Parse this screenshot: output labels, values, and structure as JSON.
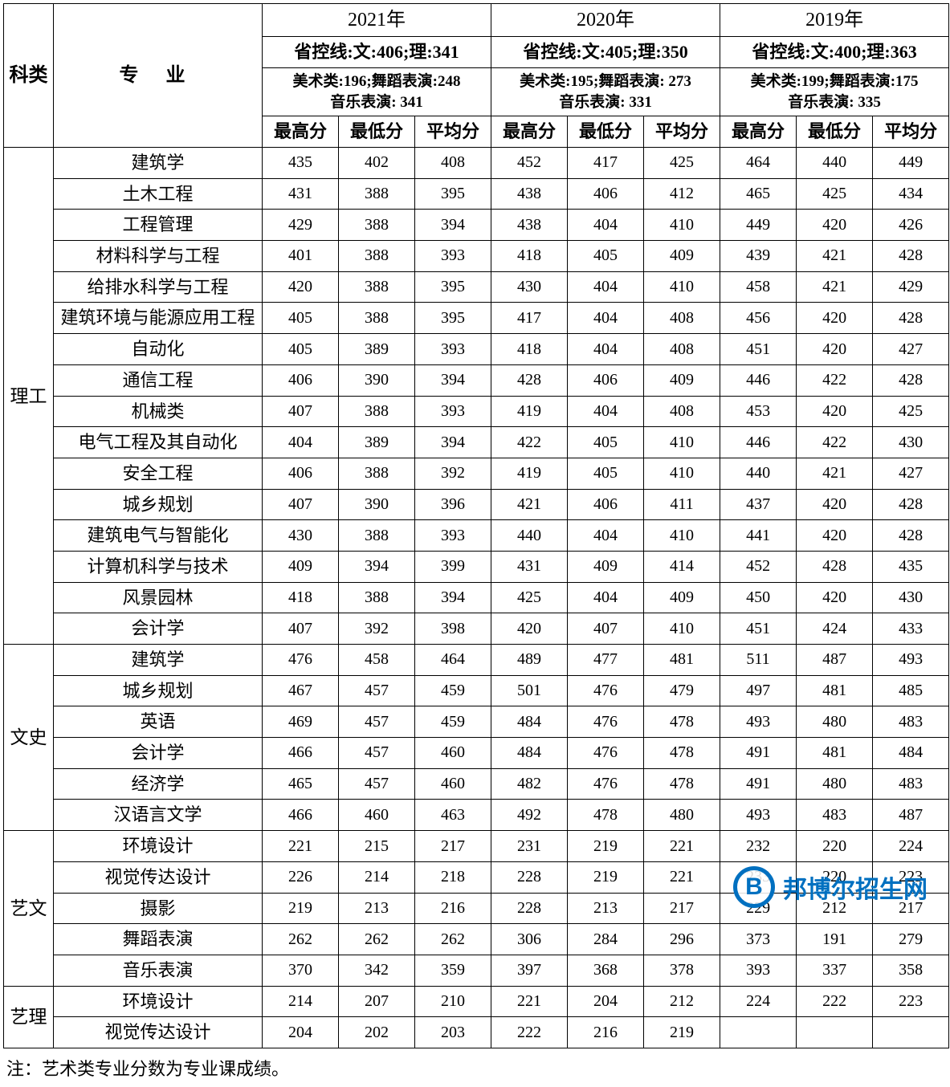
{
  "colors": {
    "text": "#000000",
    "border": "#000000",
    "background": "#ffffff",
    "watermark": "#0070c0"
  },
  "typography": {
    "base_family": "SimSun / 宋体 (serif)",
    "base_size_pt": 15,
    "header_bold": true
  },
  "header": {
    "category_label": "科类",
    "major_label": "专 业",
    "score_cols": [
      "最高分",
      "最低分",
      "平均分"
    ],
    "years": [
      {
        "year_label": "2021年",
        "control_line": "省控线:文:406;理:341",
        "art_lines": "美术类:196;舞蹈表演:248\n音乐表演: 341"
      },
      {
        "year_label": "2020年",
        "control_line": "省控线:文:405;理:350",
        "art_lines": "美术类:195;舞蹈表演: 273\n音乐表演: 331"
      },
      {
        "year_label": "2019年",
        "control_line": "省控线:文:400;理:363",
        "art_lines": "美术类:199;舞蹈表演:175\n音乐表演: 335"
      }
    ]
  },
  "groups": [
    {
      "category": "理工",
      "rows": [
        {
          "major": "建筑学",
          "s": [
            435,
            402,
            408,
            452,
            417,
            425,
            464,
            440,
            449
          ]
        },
        {
          "major": "土木工程",
          "s": [
            431,
            388,
            395,
            438,
            406,
            412,
            465,
            425,
            434
          ]
        },
        {
          "major": "工程管理",
          "s": [
            429,
            388,
            394,
            438,
            404,
            410,
            449,
            420,
            426
          ]
        },
        {
          "major": "材料科学与工程",
          "s": [
            401,
            388,
            393,
            418,
            405,
            409,
            439,
            421,
            428
          ]
        },
        {
          "major": "给排水科学与工程",
          "s": [
            420,
            388,
            395,
            430,
            404,
            410,
            458,
            421,
            429
          ]
        },
        {
          "major": "建筑环境与能源应用工程",
          "s": [
            405,
            388,
            395,
            417,
            404,
            408,
            456,
            420,
            428
          ]
        },
        {
          "major": "自动化",
          "s": [
            405,
            389,
            393,
            418,
            404,
            408,
            451,
            420,
            427
          ]
        },
        {
          "major": "通信工程",
          "s": [
            406,
            390,
            394,
            428,
            406,
            409,
            446,
            422,
            428
          ]
        },
        {
          "major": "机械类",
          "s": [
            407,
            388,
            393,
            419,
            404,
            408,
            453,
            420,
            425
          ]
        },
        {
          "major": "电气工程及其自动化",
          "s": [
            404,
            389,
            394,
            422,
            405,
            410,
            446,
            422,
            430
          ]
        },
        {
          "major": "安全工程",
          "s": [
            406,
            388,
            392,
            419,
            405,
            410,
            440,
            421,
            427
          ]
        },
        {
          "major": "城乡规划",
          "s": [
            407,
            390,
            396,
            421,
            406,
            411,
            437,
            420,
            428
          ]
        },
        {
          "major": "建筑电气与智能化",
          "s": [
            430,
            388,
            393,
            440,
            404,
            410,
            441,
            420,
            428
          ]
        },
        {
          "major": "计算机科学与技术",
          "s": [
            409,
            394,
            399,
            431,
            409,
            414,
            452,
            428,
            435
          ]
        },
        {
          "major": "风景园林",
          "s": [
            418,
            388,
            394,
            425,
            404,
            409,
            450,
            420,
            430
          ]
        },
        {
          "major": "会计学",
          "s": [
            407,
            392,
            398,
            420,
            407,
            410,
            451,
            424,
            433
          ]
        }
      ]
    },
    {
      "category": "文史",
      "rows": [
        {
          "major": "建筑学",
          "s": [
            476,
            458,
            464,
            489,
            477,
            481,
            511,
            487,
            493
          ]
        },
        {
          "major": "城乡规划",
          "s": [
            467,
            457,
            459,
            501,
            476,
            479,
            497,
            481,
            485
          ]
        },
        {
          "major": "英语",
          "s": [
            469,
            457,
            459,
            484,
            476,
            478,
            493,
            480,
            483
          ]
        },
        {
          "major": "会计学",
          "s": [
            466,
            457,
            460,
            484,
            476,
            478,
            491,
            481,
            484
          ]
        },
        {
          "major": "经济学",
          "s": [
            465,
            457,
            460,
            482,
            476,
            478,
            491,
            480,
            483
          ]
        },
        {
          "major": "汉语言文学",
          "s": [
            466,
            460,
            463,
            492,
            478,
            480,
            493,
            483,
            487
          ]
        }
      ]
    },
    {
      "category": "艺文",
      "rows": [
        {
          "major": "环境设计",
          "s": [
            221,
            215,
            217,
            231,
            219,
            221,
            232,
            220,
            224
          ]
        },
        {
          "major": "视觉传达设计",
          "s": [
            226,
            214,
            218,
            228,
            219,
            221,
            233,
            220,
            223
          ]
        },
        {
          "major": "摄影",
          "s": [
            219,
            213,
            216,
            228,
            213,
            217,
            229,
            212,
            217
          ]
        },
        {
          "major": "舞蹈表演",
          "s": [
            262,
            262,
            262,
            306,
            284,
            296,
            373,
            191,
            279
          ]
        },
        {
          "major": "音乐表演",
          "s": [
            370,
            342,
            359,
            397,
            368,
            378,
            393,
            337,
            358
          ]
        }
      ]
    },
    {
      "category": "艺理",
      "rows": [
        {
          "major": "环境设计",
          "s": [
            214,
            207,
            210,
            221,
            204,
            212,
            224,
            222,
            223
          ]
        },
        {
          "major": "视觉传达设计",
          "s": [
            204,
            202,
            203,
            222,
            216,
            219,
            null,
            null,
            null
          ]
        }
      ]
    }
  ],
  "footnote": "注：艺术类专业分数为专业课成绩。",
  "watermark": {
    "badge_letter": "B",
    "text": "邦博尔招生网"
  }
}
